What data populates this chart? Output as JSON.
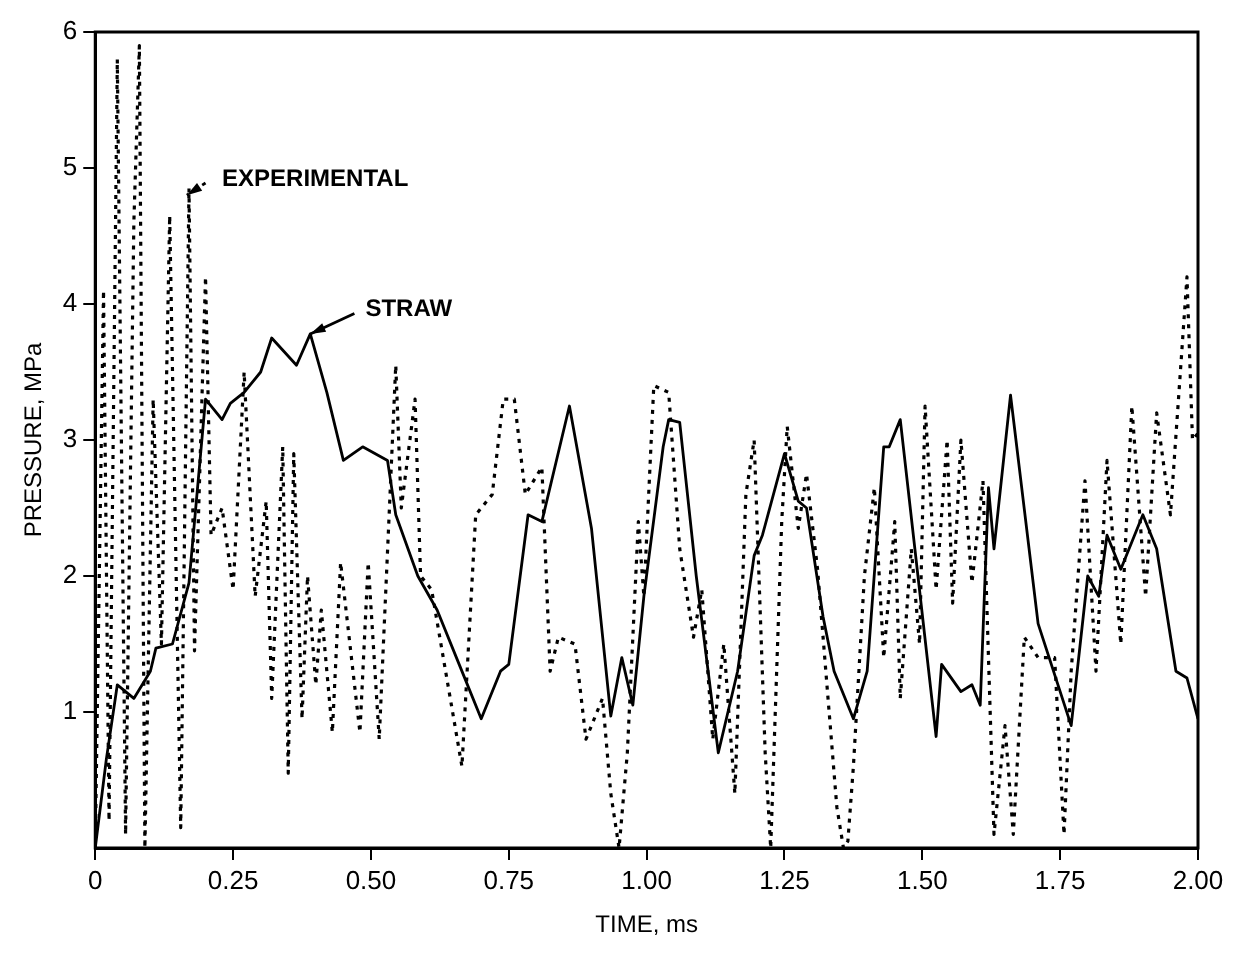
{
  "chart_data": {
    "type": "line",
    "xlabel": "TIME, ms",
    "ylabel": "PRESSURE, MPa",
    "xlim": [
      0,
      2
    ],
    "ylim": [
      0,
      6
    ],
    "xticks": [
      0,
      0.25,
      {
        "value": 0.5,
        "label": "0.50"
      },
      0.75,
      {
        "value": 1,
        "label": "1.00"
      },
      1.25,
      {
        "value": 1.5,
        "label": "1.50"
      },
      1.75,
      {
        "value": 2,
        "label": "2.00"
      }
    ],
    "yticks": [
      1,
      2,
      3,
      4,
      5,
      6
    ],
    "grid": false,
    "legend": "top left",
    "marker": "none",
    "series": [
      {
        "name": "EXPERIMENTAL",
        "color": "#000000",
        "line_style": "dotted",
        "x": [
          0,
          0.015,
          0.025,
          0.04,
          0.055,
          0.07,
          0.08,
          0.09,
          0.105,
          0.12,
          0.135,
          0.155,
          0.17,
          0.18,
          0.2,
          0.21,
          0.23,
          0.25,
          0.27,
          0.29,
          0.31,
          0.32,
          0.34,
          0.35,
          0.36,
          0.375,
          0.385,
          0.4,
          0.41,
          0.43,
          0.445,
          0.48,
          0.495,
          0.515,
          0.545,
          0.555,
          0.58,
          0.59,
          0.61,
          0.665,
          0.69,
          0.72,
          0.74,
          0.76,
          0.78,
          0.81,
          0.825,
          0.84,
          0.87,
          0.89,
          0.92,
          0.935,
          0.95,
          0.965,
          0.985,
          0.995,
          1.013,
          1.04,
          1.06,
          1.085,
          1.1,
          1.12,
          1.14,
          1.16,
          1.17,
          1.18,
          1.195,
          1.215,
          1.225,
          1.245,
          1.255,
          1.275,
          1.29,
          1.31,
          1.345,
          1.357,
          1.365,
          1.375,
          1.395,
          1.413,
          1.43,
          1.45,
          1.46,
          1.48,
          1.495,
          1.505,
          1.525,
          1.545,
          1.555,
          1.57,
          1.59,
          1.61,
          1.63,
          1.65,
          1.665,
          1.685,
          1.71,
          1.74,
          1.757,
          1.77,
          1.795,
          1.815,
          1.835,
          1.86,
          1.88,
          1.905,
          1.925,
          1.95,
          1.98,
          1.99,
          2
        ],
        "values": [
          0,
          4.1,
          0.2,
          5.8,
          0.1,
          4.6,
          5.9,
          0,
          3.3,
          1.5,
          4.65,
          0.15,
          4.85,
          1.45,
          4.2,
          2.3,
          2.5,
          1.9,
          3.5,
          1.85,
          2.55,
          1.1,
          2.95,
          0.55,
          2.9,
          0.95,
          2,
          1.2,
          1.75,
          0.85,
          2.1,
          0.85,
          2.1,
          0.8,
          3.55,
          2.5,
          3.3,
          2,
          1.9,
          0.6,
          2.45,
          2.6,
          3.3,
          3.3,
          2.6,
          2.8,
          1.3,
          1.55,
          1.5,
          0.8,
          1.1,
          0.4,
          0,
          0.7,
          2.4,
          1.85,
          3.4,
          3.35,
          2.2,
          1.55,
          1.9,
          0.8,
          1.5,
          0.4,
          1.5,
          2.6,
          3,
          0.7,
          0,
          2.4,
          3.1,
          2.35,
          2.75,
          2.05,
          0.3,
          0,
          0.05,
          0.6,
          2,
          2.65,
          1.4,
          2.4,
          1.1,
          2.2,
          1.5,
          3.25,
          1.9,
          3,
          1.8,
          3,
          1.95,
          2.7,
          0.1,
          0.9,
          0.1,
          1.55,
          1.4,
          1.4,
          0.1,
          1.3,
          2.7,
          1.3,
          2.85,
          1.5,
          3.25,
          1.85,
          3.2,
          2.45,
          4.2,
          3,
          3.05
        ]
      },
      {
        "name": "STRAW",
        "color": "#000000",
        "line_style": "solid",
        "x": [
          0,
          0.02,
          0.04,
          0.07,
          0.1,
          0.11,
          0.14,
          0.17,
          0.2,
          0.23,
          0.245,
          0.27,
          0.3,
          0.32,
          0.365,
          0.39,
          0.42,
          0.45,
          0.485,
          0.53,
          0.545,
          0.585,
          0.62,
          0.66,
          0.7,
          0.735,
          0.75,
          0.785,
          0.81,
          0.86,
          0.9,
          0.935,
          0.955,
          0.975,
          0.995,
          1.03,
          1.04,
          1.06,
          1.09,
          1.13,
          1.165,
          1.195,
          1.21,
          1.25,
          1.275,
          1.29,
          1.32,
          1.34,
          1.375,
          1.4,
          1.43,
          1.44,
          1.46,
          1.525,
          1.535,
          1.57,
          1.59,
          1.605,
          1.62,
          1.63,
          1.66,
          1.71,
          1.77,
          1.8,
          1.82,
          1.835,
          1.86,
          1.9,
          1.925,
          1.96,
          1.98,
          2
        ],
        "values": [
          0,
          0.65,
          1.2,
          1.1,
          1.3,
          1.47,
          1.5,
          1.95,
          3.3,
          3.15,
          3.27,
          3.35,
          3.5,
          3.75,
          3.55,
          3.78,
          3.35,
          2.85,
          2.95,
          2.85,
          2.45,
          2,
          1.75,
          1.35,
          0.95,
          1.3,
          1.35,
          2.45,
          2.4,
          3.25,
          2.35,
          0.97,
          1.4,
          1.05,
          1.85,
          2.95,
          3.15,
          3.13,
          2,
          0.7,
          1.3,
          2.15,
          2.3,
          2.9,
          2.55,
          2.5,
          1.7,
          1.3,
          0.95,
          1.3,
          2.95,
          2.95,
          3.15,
          0.82,
          1.35,
          1.15,
          1.2,
          1.05,
          2.65,
          2.2,
          3.33,
          1.65,
          0.9,
          2,
          1.85,
          2.3,
          2.05,
          2.45,
          2.2,
          1.3,
          1.25,
          0.95
        ]
      }
    ]
  }
}
